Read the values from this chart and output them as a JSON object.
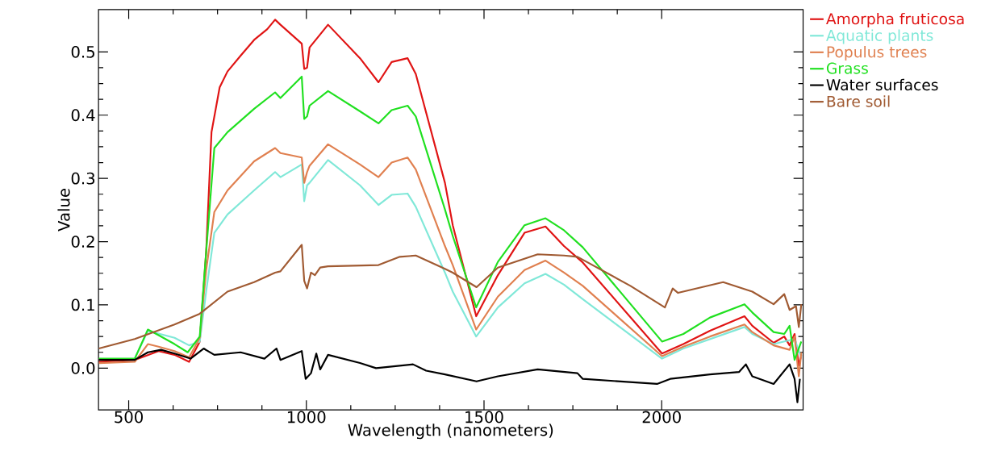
{
  "chart_data": {
    "type": "line",
    "xlabel": "Wavelength (nanometers)",
    "ylabel": "Value",
    "xlim": [
      415,
      2398
    ],
    "ylim": [
      -0.066,
      0.567
    ],
    "xticks": [
      500,
      1000,
      1500,
      2000
    ],
    "yticks": [
      {
        "value": 0,
        "label": "0.0"
      },
      0.1,
      0.2,
      0.3,
      0.4,
      0.5
    ],
    "legend": "right",
    "series": [
      {
        "name": "Amorpha fruticosa",
        "color": "#e01414",
        "x": [
          416,
          517,
          584,
          629,
          670,
          700,
          718,
          733,
          756,
          778,
          815,
          853,
          890,
          912,
          927,
          987,
          994,
          1002,
          1009,
          1061,
          1151,
          1203,
          1240,
          1285,
          1308,
          1390,
          1412,
          1478,
          1539,
          1614,
          1673,
          1725,
          1778,
          2001,
          2061,
          2136,
          2233,
          2255,
          2315,
          2345,
          2360,
          2374,
          2386,
          2393
        ],
        "values": [
          0.01,
          0.013,
          0.027,
          0.021,
          0.01,
          0.042,
          0.184,
          0.373,
          0.444,
          0.469,
          0.494,
          0.519,
          0.536,
          0.551,
          0.543,
          0.513,
          0.473,
          0.475,
          0.507,
          0.543,
          0.49,
          0.452,
          0.484,
          0.49,
          0.465,
          0.293,
          0.226,
          0.082,
          0.147,
          0.214,
          0.224,
          0.193,
          0.167,
          0.023,
          0.038,
          0.059,
          0.082,
          0.067,
          0.04,
          0.05,
          0.036,
          0.054,
          0.004,
          0.021
        ]
      },
      {
        "name": "Aquatic plants",
        "color": "#80e8d8",
        "x": [
          517,
          554,
          629,
          670,
          700,
          718,
          741,
          778,
          853,
          912,
          927,
          987,
          994,
          1002,
          1009,
          1061,
          1151,
          1203,
          1240,
          1285,
          1308,
          1390,
          1412,
          1478,
          1539,
          1614,
          1673,
          1725,
          1778,
          2001,
          2061,
          2233,
          2255,
          2315,
          2374,
          2393
        ],
        "values": [
          0.015,
          0.059,
          0.048,
          0.036,
          0.042,
          0.121,
          0.214,
          0.243,
          0.281,
          0.31,
          0.302,
          0.322,
          0.264,
          0.289,
          0.293,
          0.329,
          0.289,
          0.258,
          0.274,
          0.276,
          0.255,
          0.151,
          0.121,
          0.05,
          0.096,
          0.134,
          0.149,
          0.132,
          0.109,
          0.015,
          0.031,
          0.065,
          0.054,
          0.038,
          0.046,
          0.017
        ]
      },
      {
        "name": "Populus trees",
        "color": "#e08050",
        "x": [
          416,
          517,
          554,
          584,
          629,
          670,
          700,
          718,
          741,
          778,
          853,
          912,
          927,
          987,
          994,
          1002,
          1009,
          1061,
          1151,
          1203,
          1240,
          1285,
          1308,
          1390,
          1412,
          1478,
          1539,
          1614,
          1673,
          1725,
          1778,
          2001,
          2061,
          2136,
          2233,
          2255,
          2315,
          2360,
          2374,
          2386,
          2393
        ],
        "values": [
          0.008,
          0.01,
          0.038,
          0.034,
          0.027,
          0.017,
          0.048,
          0.155,
          0.247,
          0.281,
          0.327,
          0.348,
          0.34,
          0.333,
          0.293,
          0.31,
          0.32,
          0.354,
          0.322,
          0.302,
          0.325,
          0.333,
          0.314,
          0.193,
          0.163,
          0.061,
          0.113,
          0.155,
          0.17,
          0.151,
          0.13,
          0.019,
          0.034,
          0.05,
          0.069,
          0.057,
          0.036,
          0.029,
          0.05,
          -0.013,
          0.025
        ]
      },
      {
        "name": "Grass",
        "color": "#20e020",
        "x": [
          416,
          517,
          554,
          584,
          629,
          666,
          700,
          718,
          741,
          778,
          853,
          912,
          927,
          987,
          994,
          1002,
          1009,
          1061,
          1151,
          1203,
          1240,
          1285,
          1308,
          1390,
          1412,
          1478,
          1539,
          1614,
          1673,
          1725,
          1778,
          2001,
          2061,
          2136,
          2233,
          2255,
          2315,
          2345,
          2360,
          2374,
          2393
        ],
        "values": [
          0.015,
          0.015,
          0.061,
          0.052,
          0.038,
          0.025,
          0.05,
          0.184,
          0.348,
          0.373,
          0.41,
          0.436,
          0.427,
          0.461,
          0.394,
          0.398,
          0.415,
          0.438,
          0.406,
          0.387,
          0.408,
          0.415,
          0.398,
          0.251,
          0.209,
          0.096,
          0.168,
          0.226,
          0.237,
          0.218,
          0.191,
          0.042,
          0.054,
          0.08,
          0.101,
          0.088,
          0.057,
          0.054,
          0.067,
          0.013,
          0.042
        ]
      },
      {
        "name": "Water surfaces",
        "color": "#000000",
        "x": [
          416,
          517,
          554,
          591,
          629,
          674,
          711,
          741,
          815,
          882,
          916,
          927,
          987,
          998,
          1013,
          1028,
          1039,
          1061,
          1151,
          1196,
          1300,
          1337,
          1390,
          1479,
          1539,
          1651,
          1763,
          1778,
          1987,
          2024,
          2136,
          2218,
          2237,
          2255,
          2315,
          2360,
          2374,
          2382,
          2389
        ],
        "values": [
          0.013,
          0.013,
          0.025,
          0.029,
          0.023,
          0.015,
          0.031,
          0.021,
          0.025,
          0.015,
          0.031,
          0.013,
          0.027,
          -0.017,
          -0.008,
          0.023,
          -0.002,
          0.021,
          0.008,
          0.0,
          0.006,
          -0.004,
          -0.01,
          -0.021,
          -0.013,
          -0.002,
          -0.008,
          -0.017,
          -0.025,
          -0.017,
          -0.01,
          -0.006,
          0.006,
          -0.013,
          -0.025,
          0.006,
          -0.017,
          -0.054,
          -0.017
        ]
      },
      {
        "name": "Bare soil",
        "color": "#a05a32",
        "x": [
          416,
          517,
          629,
          700,
          778,
          853,
          912,
          927,
          987,
          994,
          1002,
          1013,
          1024,
          1039,
          1061,
          1203,
          1263,
          1308,
          1390,
          1412,
          1479,
          1539,
          1651,
          1725,
          1763,
          1912,
          2009,
          2031,
          2046,
          2173,
          2255,
          2315,
          2345,
          2360,
          2378,
          2386,
          2393
        ],
        "values": [
          0.031,
          0.046,
          0.069,
          0.086,
          0.121,
          0.136,
          0.151,
          0.153,
          0.195,
          0.138,
          0.126,
          0.151,
          0.147,
          0.159,
          0.161,
          0.163,
          0.176,
          0.178,
          0.157,
          0.151,
          0.128,
          0.159,
          0.18,
          0.178,
          0.176,
          0.13,
          0.096,
          0.126,
          0.119,
          0.136,
          0.121,
          0.101,
          0.117,
          0.092,
          0.098,
          0.065,
          0.101
        ]
      }
    ]
  }
}
